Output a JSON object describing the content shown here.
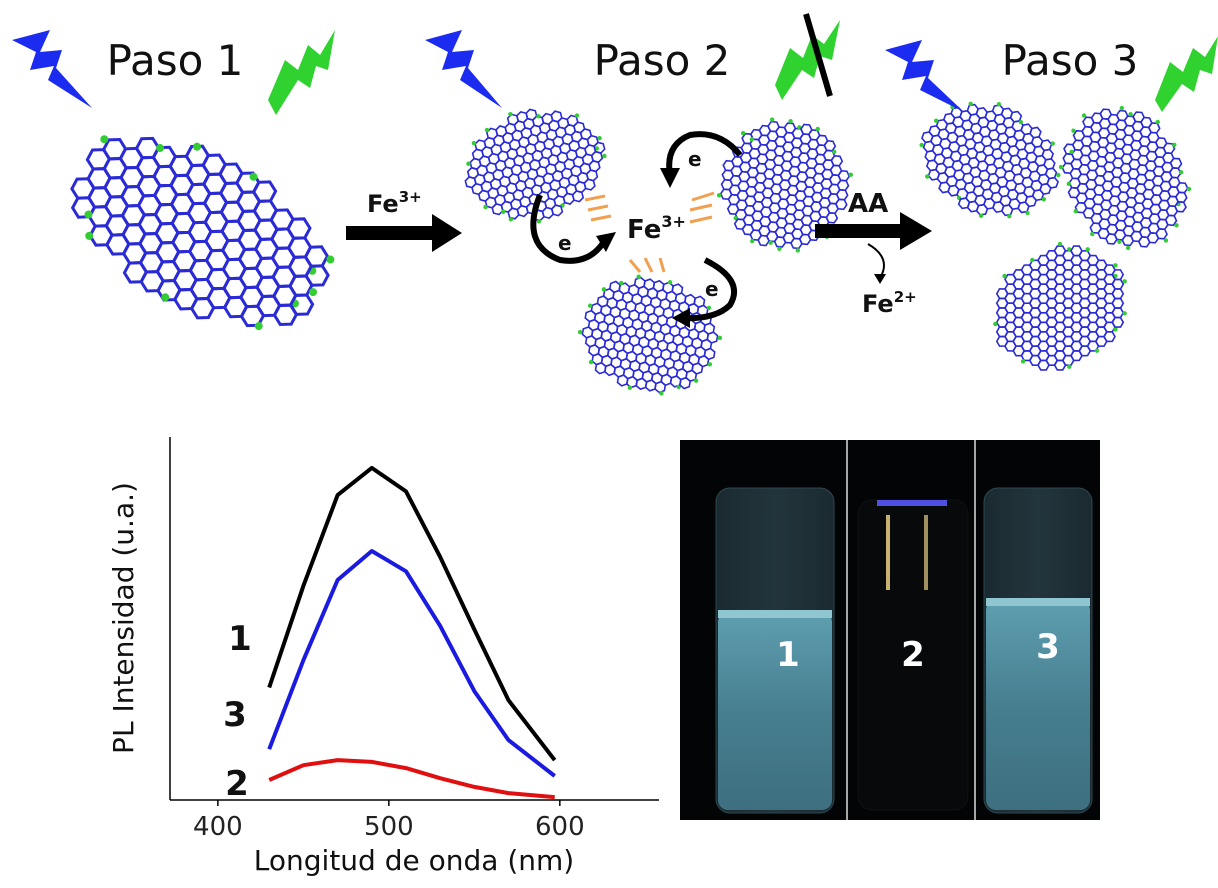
{
  "steps": [
    {
      "title": "Paso 1"
    },
    {
      "title": "Paso 2"
    },
    {
      "title": "Paso 3"
    }
  ],
  "arrow1": {
    "base": "Fe",
    "sup": "3+"
  },
  "center_ion": {
    "base": "Fe",
    "sup": "3+"
  },
  "electrons": [
    "e",
    "e",
    "e"
  ],
  "arrow2": {
    "label": "AA",
    "product": {
      "base": "Fe",
      "sup": "2+"
    }
  },
  "chart_data": {
    "type": "line",
    "xlabel": "Longitud de onda (nm)",
    "ylabel": "PL Intensidad (u.a.)",
    "x": [
      430,
      450,
      470,
      490,
      510,
      530,
      550,
      570,
      597
    ],
    "series": [
      {
        "name": "1",
        "color": "#000000",
        "values": [
          31,
          59,
          84,
          91.5,
          85,
          67,
          47,
          27.5,
          11
        ]
      },
      {
        "name": "3",
        "color": "#1a1ae0",
        "values": [
          14,
          38.5,
          60.6,
          68.6,
          63,
          48,
          30,
          16.5,
          6.6
        ]
      },
      {
        "name": "2",
        "color": "#e01010",
        "values": [
          5.5,
          9.6,
          11,
          10.5,
          8.8,
          6,
          3.6,
          1.9,
          0.8
        ]
      }
    ],
    "xlim": [
      372,
      658
    ],
    "ylim": [
      0,
      100
    ],
    "xticks": [
      400,
      500,
      600
    ]
  },
  "photo": {
    "labels": [
      "1",
      "2",
      "3"
    ]
  }
}
